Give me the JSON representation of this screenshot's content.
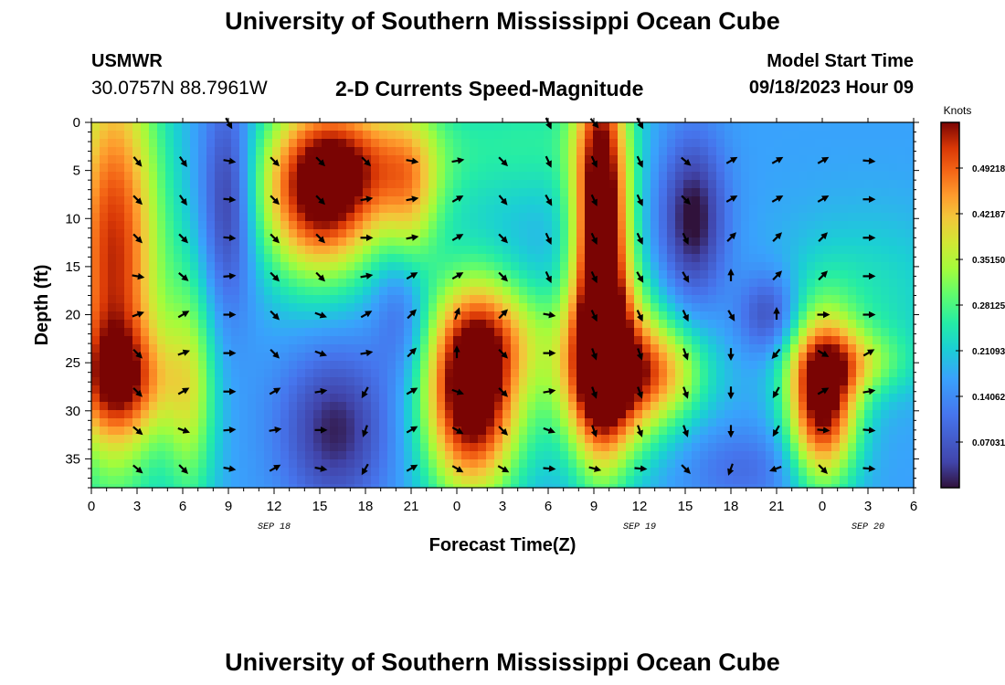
{
  "page": {
    "title_top": "University of Southern Mississippi Ocean Cube",
    "title_bottom": "University of Southern Mississippi Ocean Cube",
    "station": "USMWR",
    "coords": "30.0757N  88.7961W",
    "plot_title": "2-D Currents Speed-Magnitude",
    "model_label": "Model Start Time",
    "model_time": "09/18/2023 Hour 09"
  },
  "chart_data": {
    "type": "heatmap",
    "title": "2-D Currents Speed-Magnitude",
    "xlabel": "Forecast Time(Z)",
    "ylabel": "Depth (ft)",
    "xlim": [
      0,
      54
    ],
    "ylim": [
      0,
      38
    ],
    "x_ticks": [
      0,
      3,
      6,
      9,
      12,
      15,
      18,
      21,
      24,
      27,
      30,
      33,
      36,
      39,
      42,
      45,
      48,
      51,
      54
    ],
    "x_tick_labels": [
      "0",
      "3",
      "6",
      "9",
      "12",
      "15",
      "18",
      "21",
      "0",
      "3",
      "6",
      "9",
      "12",
      "15",
      "18",
      "21",
      "0",
      "3",
      "6"
    ],
    "y_ticks": [
      0,
      5,
      10,
      15,
      20,
      25,
      30,
      35
    ],
    "y_tick_labels": [
      "0",
      "5",
      "10",
      "15",
      "20",
      "25",
      "30",
      "35"
    ],
    "date_labels": [
      {
        "x": 12,
        "text": "SEP 18"
      },
      {
        "x": 36,
        "text": "SEP 19"
      },
      {
        "x": 51,
        "text": "SEP 20"
      }
    ],
    "colorbar": {
      "label": "Knots",
      "range": [
        0,
        0.5625
      ],
      "ticks": [
        0.07031,
        0.14062,
        0.21093,
        0.28125,
        0.3515,
        0.42187,
        0.49218
      ],
      "tick_labels": [
        "0.07031",
        "0.14062",
        "0.21093",
        "0.28125",
        "0.35150",
        "0.42187",
        "0.49218"
      ]
    },
    "arrow_times": [
      3,
      6,
      9,
      12,
      15,
      18,
      21,
      24,
      27,
      30,
      33,
      36,
      39,
      42,
      45,
      48,
      51
    ],
    "arrow_depths": [
      0,
      4,
      8,
      12,
      16,
      20,
      24,
      28,
      32,
      36
    ],
    "arrow_dirs_deg": [
      [
        null,
        null,
        150,
        null,
        null,
        null,
        null,
        null,
        null,
        155,
        140,
        150,
        null,
        null,
        null,
        null,
        null
      ],
      [
        140,
        145,
        100,
        135,
        135,
        135,
        100,
        80,
        135,
        155,
        155,
        155,
        130,
        60,
        60,
        60,
        95
      ],
      [
        135,
        145,
        95,
        135,
        135,
        80,
        80,
        60,
        140,
        150,
        155,
        155,
        135,
        60,
        60,
        60,
        90
      ],
      [
        135,
        135,
        95,
        135,
        135,
        90,
        80,
        60,
        135,
        155,
        155,
        155,
        155,
        45,
        45,
        45,
        90
      ],
      [
        100,
        130,
        85,
        135,
        135,
        80,
        60,
        60,
        135,
        155,
        155,
        150,
        150,
        0,
        45,
        45,
        90
      ],
      [
        70,
        60,
        90,
        135,
        110,
        60,
        45,
        20,
        45,
        100,
        155,
        155,
        155,
        150,
        0,
        90,
        90
      ],
      [
        135,
        70,
        90,
        135,
        110,
        80,
        45,
        0,
        135,
        90,
        160,
        160,
        160,
        180,
        220,
        120,
        60
      ],
      [
        135,
        60,
        90,
        60,
        80,
        210,
        60,
        110,
        135,
        80,
        160,
        160,
        160,
        180,
        210,
        60,
        80
      ],
      [
        130,
        110,
        85,
        80,
        90,
        200,
        60,
        120,
        135,
        110,
        160,
        160,
        160,
        180,
        210,
        95,
        95
      ],
      [
        130,
        135,
        100,
        60,
        100,
        210,
        60,
        120,
        120,
        95,
        105,
        95,
        135,
        200,
        250,
        135,
        95
      ]
    ]
  }
}
